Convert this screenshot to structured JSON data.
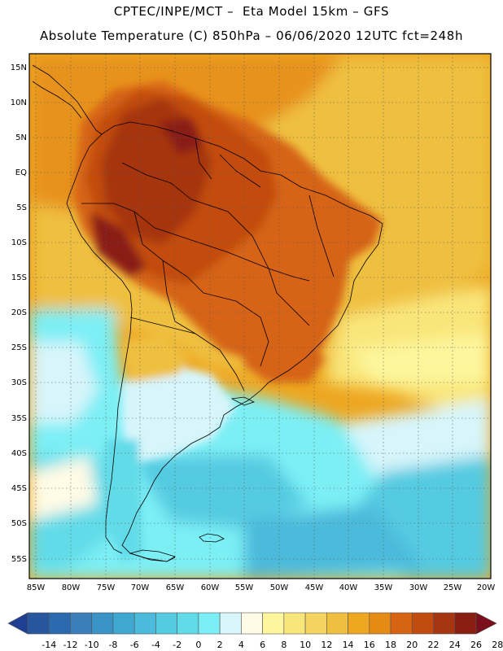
{
  "header": {
    "line1": "CPTEC/INPE/MCT –  Eta Model 15km – GFS",
    "line2": "Absolute Temperature (C) 850hPa – 06/06/2020 12UTC fct=248h"
  },
  "map": {
    "lat_labels": [
      "15N",
      "10N",
      "5N",
      "EQ",
      "5S",
      "10S",
      "15S",
      "20S",
      "25S",
      "30S",
      "35S",
      "40S",
      "45S",
      "50S",
      "55S"
    ],
    "lon_labels": [
      "85W",
      "80W",
      "75W",
      "70W",
      "65W",
      "60W",
      "55W",
      "50W",
      "45W",
      "40W",
      "35W",
      "30W",
      "25W",
      "20W"
    ]
  },
  "colorbar": {
    "labels": [
      "-14",
      "-12",
      "-10",
      "-8",
      "-6",
      "-4",
      "-2",
      "0",
      "2",
      "4",
      "6",
      "8",
      "10",
      "12",
      "14",
      "16",
      "18",
      "20",
      "22",
      "24",
      "26",
      "28"
    ],
    "colors": [
      "#1f3f93",
      "#27569f",
      "#2b6aae",
      "#3a7fba",
      "#3b92c4",
      "#3fa8d1",
      "#4bbadb",
      "#55cbe1",
      "#62dbe8",
      "#7beff5",
      "#d7f5fb",
      "#fffbe6",
      "#fdf69c",
      "#f9e67a",
      "#f4d45e",
      "#efc040",
      "#eda721",
      "#e58a14",
      "#d66412",
      "#c24c10",
      "#a63611",
      "#8a1d12",
      "#7a0e1a"
    ]
  }
}
